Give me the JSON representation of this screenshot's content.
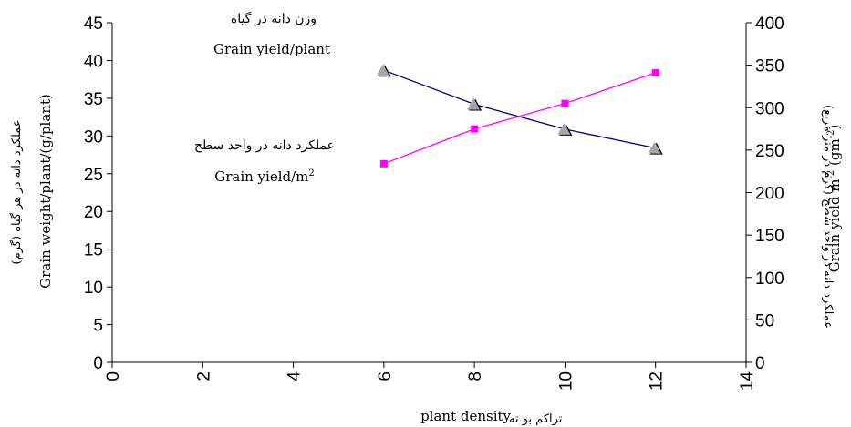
{
  "chart_data": {
    "type": "line",
    "x_axis": {
      "label_fa": "تراکم بو ته",
      "label_en": "plant density",
      "min": 0,
      "max": 14,
      "step": 2,
      "ticks": [
        "0",
        "2",
        "4",
        "6",
        "8",
        "10",
        "12",
        "14"
      ]
    },
    "y_left": {
      "label_fa": "عملکرد دانه در هر گیاه (گرم)",
      "label_en": "Grain weight/plant/(g/plant)",
      "min": 0,
      "max": 45,
      "step": 5,
      "ticks": [
        "0",
        "5",
        "10",
        "15",
        "20",
        "25",
        "30",
        "35",
        "40",
        "45"
      ]
    },
    "y_right": {
      "label_fa": "عملکرد دانه در واحد سطح (گرم در متر مربع)",
      "label_en_main": "Grain yield m",
      "label_en_sup1": "-2",
      "label_en_mid": " (gm",
      "label_en_sup2": "-2",
      "label_en_end": ")",
      "min": 0,
      "max": 400,
      "step": 50,
      "ticks": [
        "0",
        "50",
        "100",
        "150",
        "200",
        "250",
        "300",
        "350",
        "400"
      ]
    },
    "series": [
      {
        "key": "per_plant",
        "axis": "left",
        "color": "#000080",
        "marker": "triangle",
        "x": [
          6,
          8,
          10,
          12
        ],
        "y": [
          38.7,
          34.2,
          30.9,
          28.4
        ]
      },
      {
        "key": "per_area",
        "axis": "right",
        "color": "#ff00ff",
        "marker": "square",
        "x": [
          6,
          8,
          10,
          12
        ],
        "y": [
          234,
          275,
          305,
          341
        ]
      }
    ],
    "annotations": {
      "per_plant_fa": "وزن دانه در گیاه",
      "per_plant_en": "Grain yield/plant",
      "per_area_fa": "عملکرد دانه در واحد سطح",
      "per_area_en_main": "Grain yield/m",
      "per_area_en_sup": "2"
    },
    "grid": false,
    "legend": "none"
  }
}
